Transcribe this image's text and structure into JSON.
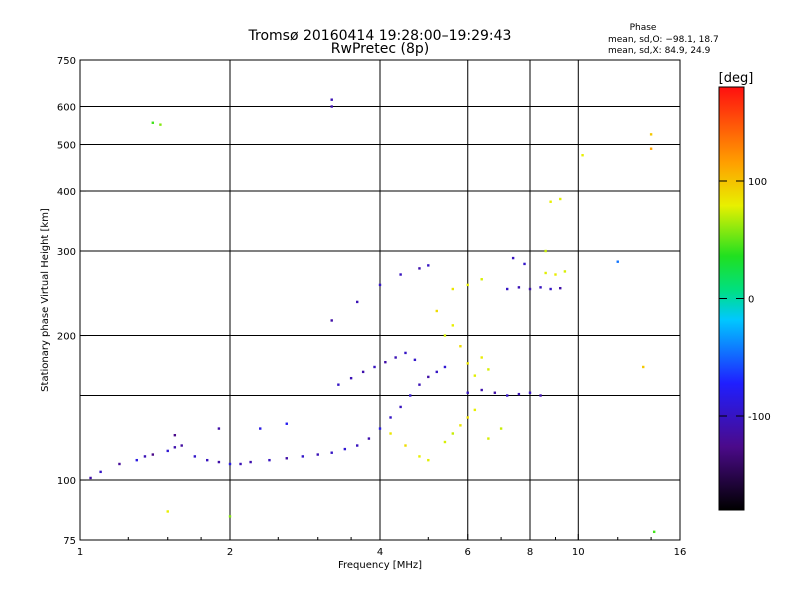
{
  "chart_data": {
    "type": "scatter",
    "title": "Tromsø 20160414 19:28:00–19:29:43",
    "subtitle": "RwPretec (8p)",
    "xlabel": "Frequency [MHz]",
    "ylabel": "Stationary phase Virtual Height [km]",
    "x_scale": "log2",
    "y_scale": "log",
    "xlim": [
      1,
      16
    ],
    "ylim": [
      75,
      750
    ],
    "x_ticks": [
      1,
      2,
      4,
      6,
      8,
      10,
      16
    ],
    "x_tick_labels": [
      "1",
      "2",
      "4",
      "6",
      "8",
      "10",
      "16"
    ],
    "x_gridlines": [
      2,
      4,
      6,
      8,
      10
    ],
    "y_ticks": [
      75,
      100,
      200,
      300,
      400,
      500,
      600,
      750
    ],
    "y_tick_labels": [
      "75",
      "100",
      "200",
      "300",
      "400",
      "500",
      "600",
      "750"
    ],
    "y_gridlines": [
      100,
      150,
      200,
      300,
      400,
      500,
      600
    ],
    "grid": true,
    "phase_stats": {
      "heading": "Phase",
      "o_line": "mean, sd,O: −98.1, 18.7",
      "x_line": "mean, sd,X:  84.9, 24.9"
    },
    "colorbar": {
      "label": "[deg]",
      "range": [
        -180,
        180
      ],
      "ticks": [
        100,
        0,
        -100
      ],
      "tick_labels": [
        "100",
        "0",
        "-100"
      ]
    },
    "series": [
      {
        "mode": "O",
        "points": [
          [
            1.05,
            101,
            -120
          ],
          [
            1.1,
            104,
            -110
          ],
          [
            1.2,
            108,
            -125
          ],
          [
            1.3,
            110,
            -100
          ],
          [
            1.35,
            112,
            -115
          ],
          [
            1.4,
            113,
            -130
          ],
          [
            1.5,
            115,
            -105
          ],
          [
            1.55,
            117,
            -118
          ],
          [
            1.6,
            118,
            -122
          ],
          [
            1.7,
            112,
            -108
          ],
          [
            1.8,
            110,
            -112
          ],
          [
            1.9,
            109,
            -120
          ],
          [
            2.0,
            108,
            -100
          ],
          [
            2.1,
            108,
            -115
          ],
          [
            2.2,
            109,
            -118
          ],
          [
            2.4,
            110,
            -112
          ],
          [
            2.6,
            111,
            -120
          ],
          [
            2.8,
            112,
            -108
          ],
          [
            3.0,
            113,
            -115
          ],
          [
            3.2,
            114,
            -110
          ],
          [
            3.4,
            116,
            -105
          ],
          [
            3.6,
            118,
            -112
          ],
          [
            3.8,
            122,
            -118
          ],
          [
            4.0,
            128,
            -100
          ],
          [
            4.2,
            135,
            -110
          ],
          [
            4.4,
            142,
            -112
          ],
          [
            4.6,
            150,
            -108
          ],
          [
            4.8,
            158,
            -115
          ],
          [
            5.0,
            164,
            -120
          ],
          [
            5.2,
            168,
            -110
          ],
          [
            5.4,
            172,
            -105
          ],
          [
            3.3,
            158,
            -110
          ],
          [
            3.5,
            163,
            -115
          ],
          [
            3.7,
            168,
            -118
          ],
          [
            3.9,
            172,
            -112
          ],
          [
            4.1,
            176,
            -120
          ],
          [
            4.3,
            180,
            -115
          ],
          [
            4.5,
            184,
            -110
          ],
          [
            4.7,
            178,
            -108
          ],
          [
            3.2,
            215,
            -120
          ],
          [
            3.6,
            235,
            -115
          ],
          [
            4.0,
            255,
            -110
          ],
          [
            4.4,
            268,
            -112
          ],
          [
            4.8,
            276,
            -118
          ],
          [
            5.0,
            280,
            -110
          ],
          [
            6.0,
            152,
            -112
          ],
          [
            6.4,
            154,
            -118
          ],
          [
            6.8,
            152,
            -120
          ],
          [
            7.2,
            150,
            -110
          ],
          [
            7.6,
            151,
            -115
          ],
          [
            8.0,
            152,
            -112
          ],
          [
            8.4,
            150,
            -118
          ],
          [
            7.2,
            250,
            -110
          ],
          [
            7.6,
            252,
            -115
          ],
          [
            8.0,
            250,
            -118
          ],
          [
            8.4,
            252,
            -112
          ],
          [
            8.8,
            250,
            -110
          ],
          [
            9.2,
            251,
            -120
          ],
          [
            7.4,
            290,
            -112
          ],
          [
            7.8,
            282,
            -108
          ],
          [
            3.2,
            620,
            -115
          ],
          [
            3.2,
            600,
            -118
          ],
          [
            2.3,
            128,
            -100
          ],
          [
            2.6,
            131,
            -95
          ],
          [
            1.55,
            124,
            -130
          ],
          [
            1.9,
            128,
            -120
          ]
        ]
      },
      {
        "mode": "X",
        "points": [
          [
            4.2,
            125,
            95
          ],
          [
            4.5,
            118,
            100
          ],
          [
            4.8,
            112,
            90
          ],
          [
            5.0,
            110,
            88
          ],
          [
            5.4,
            120,
            85
          ],
          [
            5.6,
            125,
            80
          ],
          [
            5.8,
            130,
            95
          ],
          [
            6.0,
            135,
            100
          ],
          [
            6.2,
            140,
            90
          ],
          [
            6.6,
            122,
            85
          ],
          [
            7.0,
            128,
            80
          ],
          [
            5.4,
            200,
            85
          ],
          [
            5.6,
            210,
            90
          ],
          [
            5.8,
            190,
            100
          ],
          [
            6.0,
            175,
            95
          ],
          [
            6.2,
            165,
            88
          ],
          [
            6.4,
            180,
            92
          ],
          [
            6.6,
            170,
            85
          ],
          [
            5.2,
            225,
            100
          ],
          [
            5.6,
            250,
            95
          ],
          [
            6.0,
            255,
            90
          ],
          [
            6.4,
            262,
            85
          ],
          [
            8.6,
            270,
            88
          ],
          [
            9.0,
            268,
            92
          ],
          [
            9.4,
            272,
            85
          ],
          [
            8.8,
            380,
            90
          ],
          [
            9.2,
            385,
            88
          ],
          [
            8.6,
            300,
            80
          ],
          [
            1.4,
            555,
            40
          ],
          [
            1.45,
            550,
            60
          ],
          [
            14.0,
            525,
            110
          ],
          [
            14.0,
            490,
            130
          ],
          [
            10.2,
            475,
            90
          ],
          [
            12.0,
            285,
            -60
          ],
          [
            13.5,
            172,
            110
          ],
          [
            14.2,
            78,
            40
          ],
          [
            2.0,
            84,
            60
          ],
          [
            1.5,
            86,
            90
          ]
        ]
      }
    ]
  }
}
